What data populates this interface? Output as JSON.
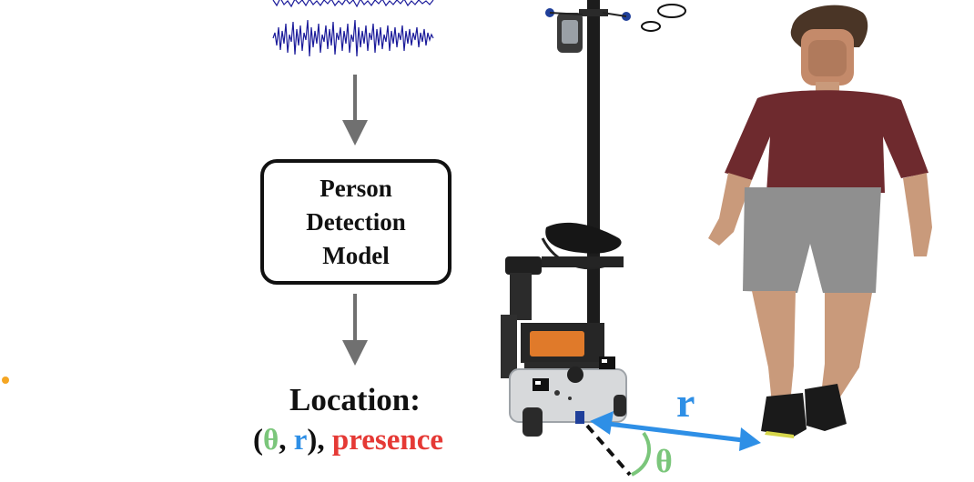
{
  "model_box": {
    "lines": [
      "Person",
      "Detection",
      "Model"
    ]
  },
  "output": {
    "title": "Location:",
    "open_paren": "(",
    "theta": "θ",
    "comma": ", ",
    "r": "r",
    "close_sep": "), ",
    "presence": "presence"
  },
  "geometry_labels": {
    "r": "r",
    "theta": "θ"
  },
  "colors": {
    "theta": "#7bc67b",
    "r": "#2e8fe6",
    "presence": "#e53935",
    "arrow_gray": "#707070",
    "signal": "#1a1a9a",
    "shirt": "#6e2a2e",
    "shorts": "#8f8f8f",
    "skin": "#c99a7b"
  },
  "icons": [
    "waveform-icon",
    "robot-illustration",
    "person-illustration",
    "orange-dot"
  ]
}
